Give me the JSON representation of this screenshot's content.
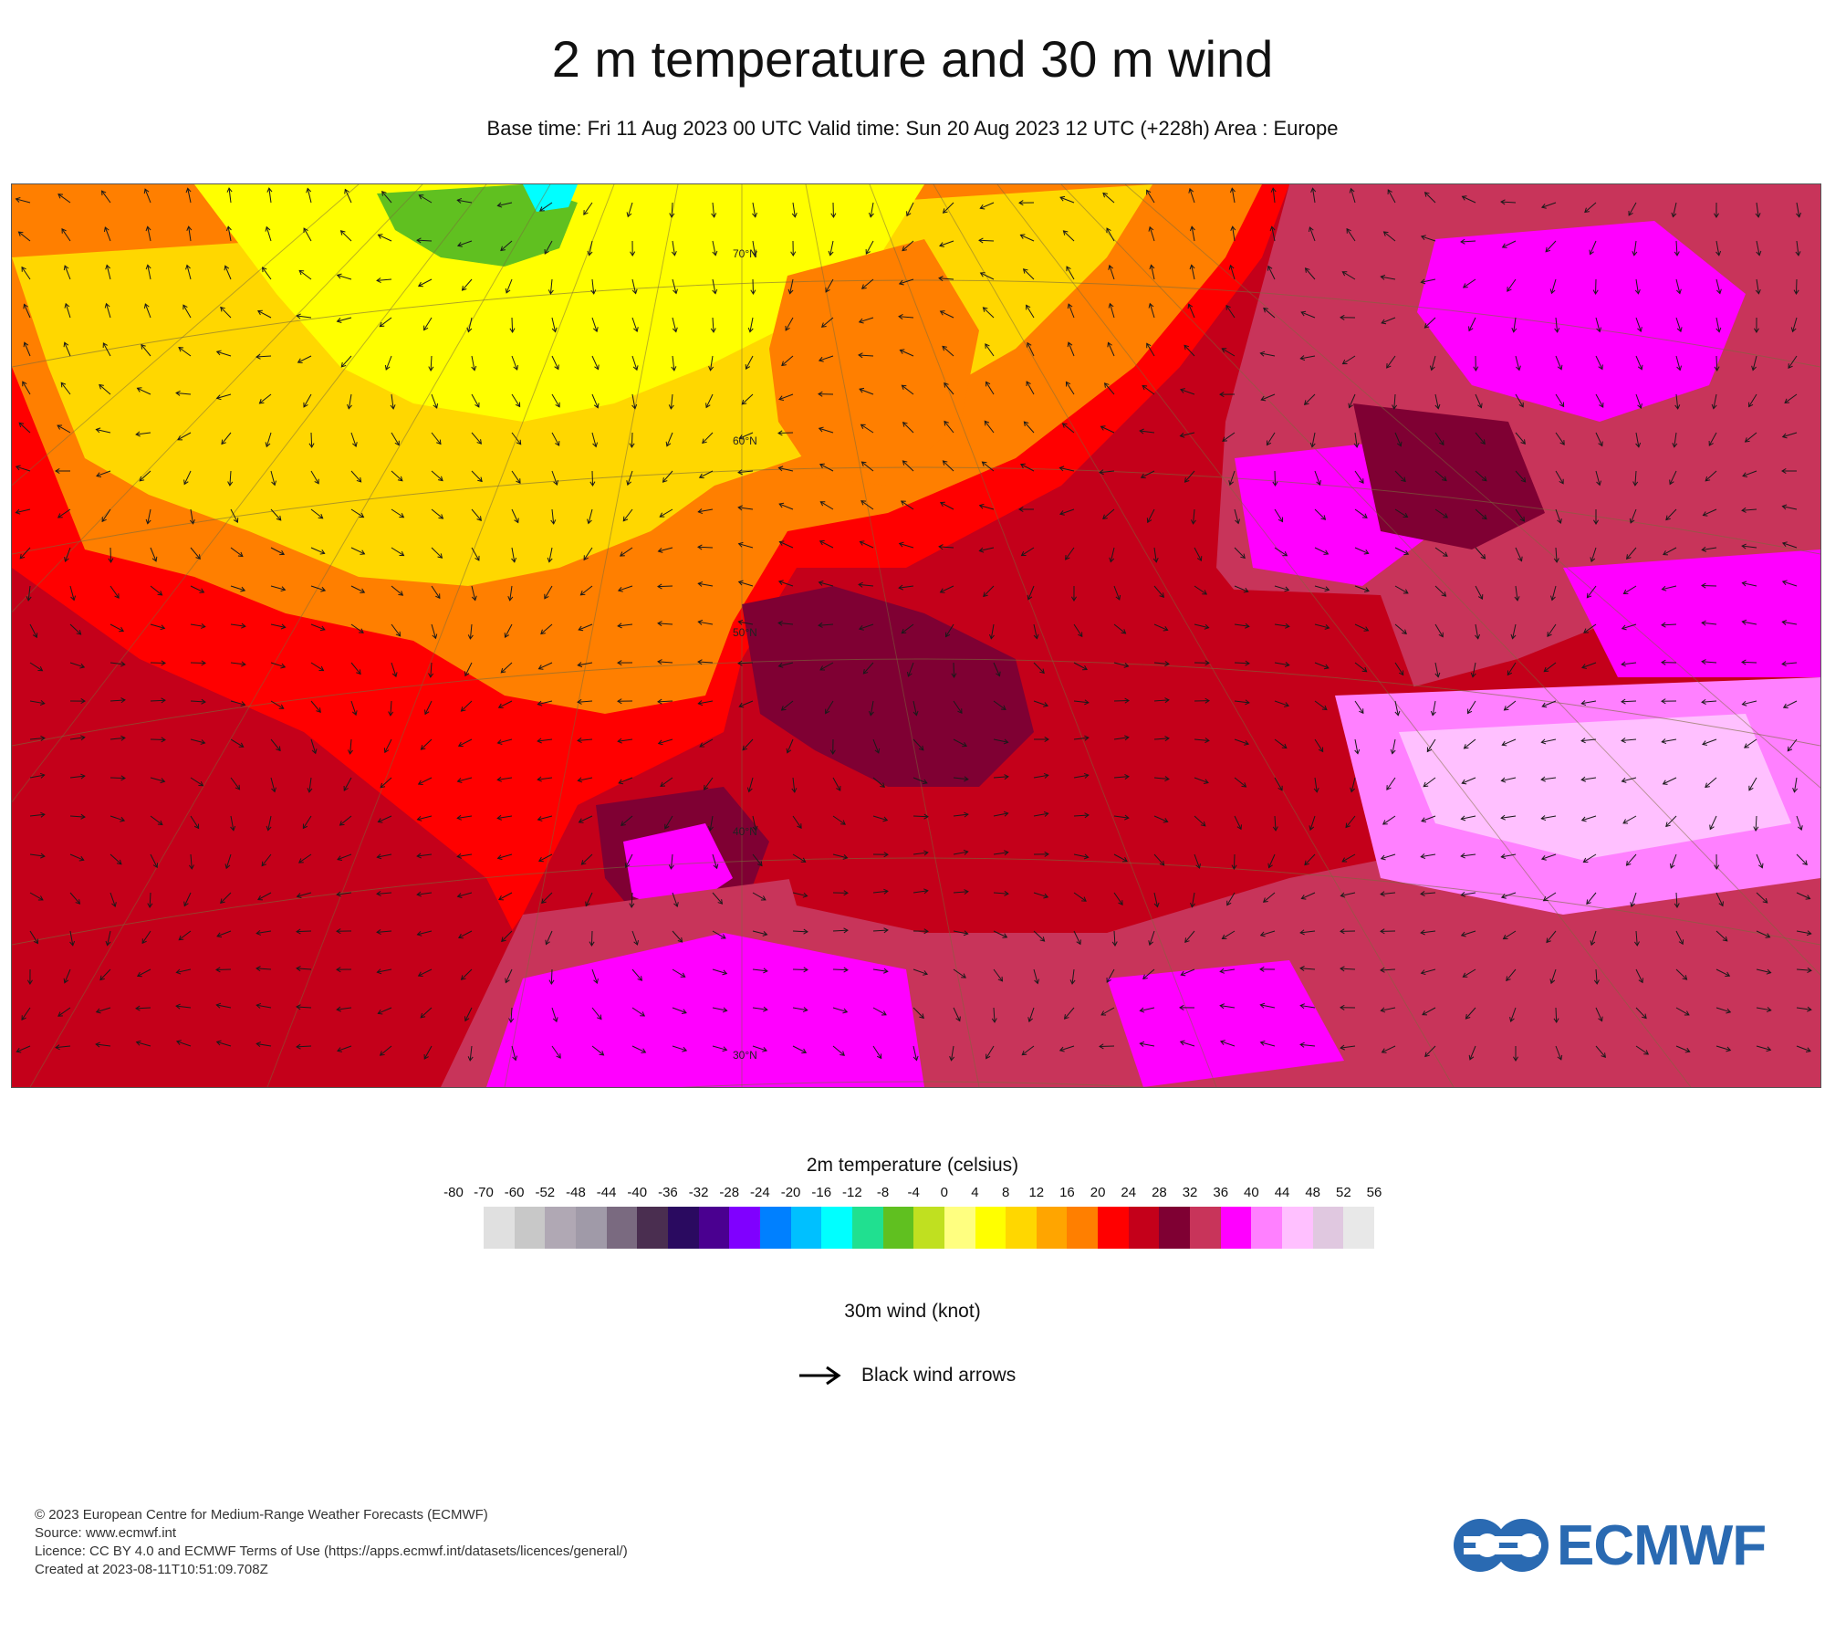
{
  "header": {
    "title": "2 m temperature and 30 m wind",
    "subtitle": "Base time: Fri 11 Aug 2023 00 UTC Valid time: Sun 20 Aug 2023 12 UTC (+228h) Area : Europe"
  },
  "map": {
    "area": "Europe",
    "latitude_labels": [
      "70°N",
      "60°N",
      "50°N",
      "40°N",
      "30°N"
    ],
    "regions": [
      {
        "name": "greenland-ice",
        "color": "#ffff00"
      },
      {
        "name": "north-atlantic",
        "color": "#ffd700"
      },
      {
        "name": "mid-atlantic",
        "color": "#ff7f00"
      },
      {
        "name": "subtropical-atlantic",
        "color": "#ff0000"
      },
      {
        "name": "western-europe",
        "color": "#c4001a"
      },
      {
        "name": "central-europe",
        "color": "#7f0033"
      },
      {
        "name": "north-africa",
        "color": "#c8345a"
      },
      {
        "name": "sahara-hot",
        "color": "#ff00ff"
      },
      {
        "name": "arabia-hot",
        "color": "#ff80ff"
      },
      {
        "name": "extreme-hot",
        "color": "#ffc0ff"
      },
      {
        "name": "scandinavia",
        "color": "#ff7f00"
      }
    ]
  },
  "legend": {
    "temperature_title": "2m temperature (celsius)",
    "ticks": [
      "-80",
      "-70",
      "-60",
      "-52",
      "-48",
      "-44",
      "-40",
      "-36",
      "-32",
      "-28",
      "-24",
      "-20",
      "-16",
      "-12",
      "-8",
      "-4",
      "0",
      "4",
      "8",
      "12",
      "16",
      "20",
      "24",
      "28",
      "32",
      "36",
      "40",
      "44",
      "48",
      "52",
      "56"
    ],
    "colors": [
      "#e0e0e0",
      "#c8c8c8",
      "#b0a8b4",
      "#a09aa8",
      "#7a6a80",
      "#4a2e50",
      "#2a0a60",
      "#4a0090",
      "#8000ff",
      "#0080ff",
      "#00c0ff",
      "#00ffff",
      "#20e090",
      "#60c020",
      "#c0e020",
      "#ffff80",
      "#ffff00",
      "#ffd700",
      "#ffa500",
      "#ff7f00",
      "#ff0000",
      "#c4001a",
      "#7f0033",
      "#c8345a",
      "#ff00ff",
      "#ff80ff",
      "#ffc0ff",
      "#e0c8e0",
      "#e8e8e8"
    ],
    "wind_title": "30m wind (knot)",
    "wind_arrow_label": "Black wind arrows",
    "wind_arrow_icon": "right-arrow"
  },
  "footer": {
    "copyright": "© 2023 European Centre for Medium-Range Weather Forecasts (ECMWF)",
    "source": "Source: www.ecmwf.int",
    "licence": "Licence: CC BY 4.0 and ECMWF Terms of Use (https://apps.ecmwf.int/datasets/licences/general/)",
    "created": "Created at 2023-08-11T10:51:09.708Z"
  },
  "logo": {
    "text": "ECMWF",
    "color": "#2a6ab2"
  }
}
